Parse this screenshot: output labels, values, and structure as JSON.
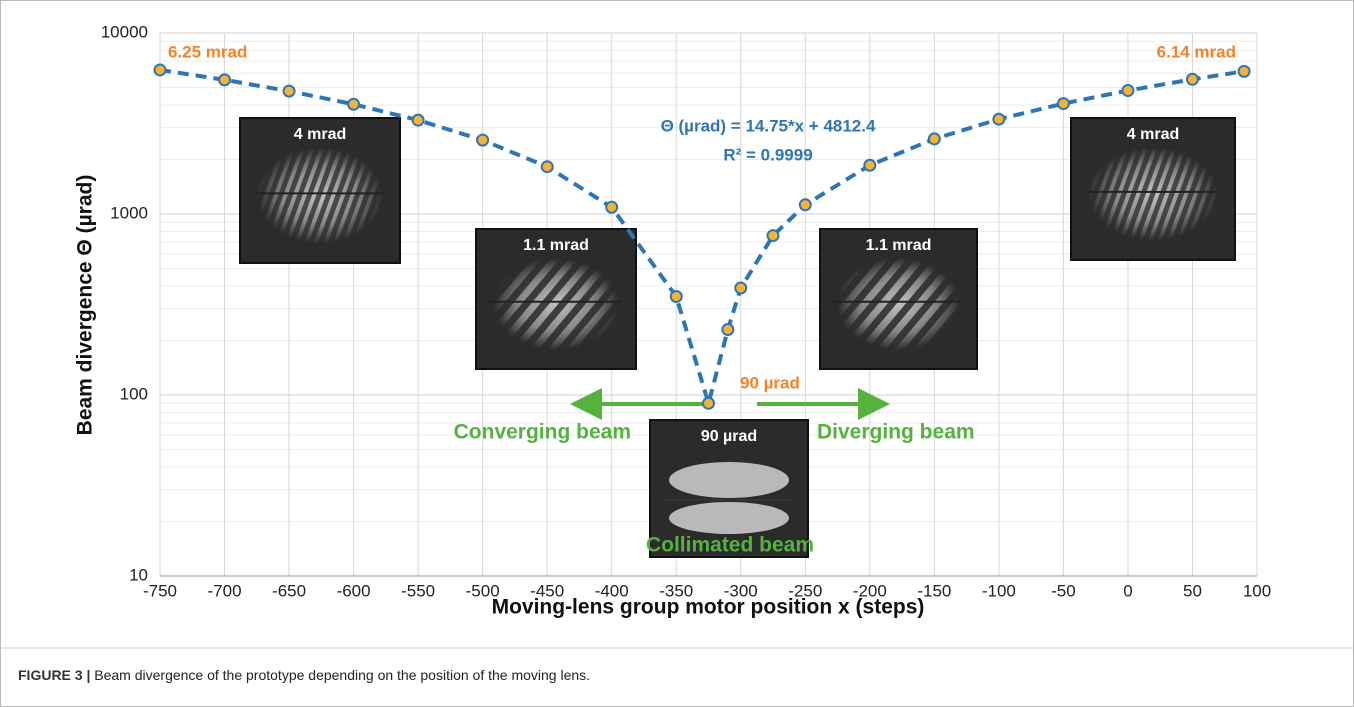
{
  "chart_data": {
    "type": "line",
    "x_label": "Moving-lens group motor position x (steps)",
    "y_label": "Beam divergence Θ (µrad)",
    "x": [
      -750,
      -700,
      -650,
      -600,
      -550,
      -500,
      -450,
      -400,
      -350,
      -325,
      -310,
      -300,
      -275,
      -250,
      -200,
      -150,
      -100,
      -50,
      0,
      50,
      90
    ],
    "values": [
      6250,
      5510,
      4775,
      4040,
      3300,
      2560,
      1825,
      1090,
      350,
      90,
      230,
      390,
      760,
      1125,
      1860,
      2600,
      3340,
      4075,
      4810,
      5550,
      6140
    ],
    "color": "#2e75b6",
    "marker_color": "#f5b335",
    "xlim": [
      -750,
      100
    ],
    "xticks": [
      -750,
      -700,
      -650,
      -600,
      -550,
      -500,
      -450,
      -400,
      -350,
      -300,
      -250,
      -200,
      -150,
      -100,
      -50,
      0,
      50,
      100
    ],
    "ylim": [
      10,
      10000
    ],
    "yticks": [
      10,
      100,
      1000,
      10000
    ],
    "yscale": "log",
    "grid": true,
    "minor_grid": true,
    "annotations": {
      "left_end": "6.25 mrad",
      "right_end": "6.14 mrad",
      "equation": "Θ (µrad) = 14.75*x + 4812.4",
      "r_squared": "R² = 0.9999",
      "minimum": "90 µrad",
      "converging": "Converging beam",
      "diverging": "Diverging beam",
      "collimated": "Collimated beam"
    },
    "insets": [
      "4 mrad",
      "1.1 mrad",
      "1.1 mrad",
      "4 mrad",
      "90 µrad"
    ],
    "caption_label": "FIGURE 3 |",
    "caption": " Beam divergence of the prototype depending on the position of the moving lens."
  }
}
